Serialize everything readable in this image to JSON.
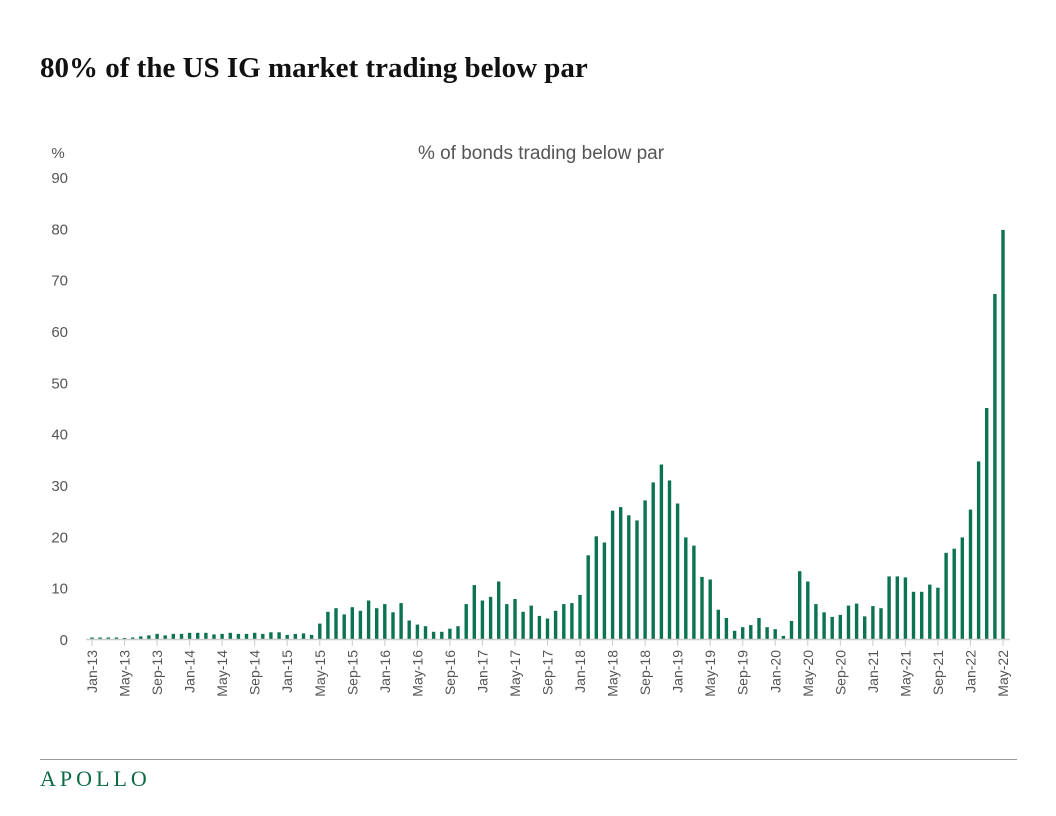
{
  "title": "80% of the US IG market trading below par",
  "logo": "APOLLO",
  "chart_data": {
    "type": "bar",
    "title": "% of bonds trading below par",
    "ylabel": "%",
    "xlabel": "",
    "ylim": [
      0,
      90
    ],
    "yticks": [
      0,
      10,
      20,
      30,
      40,
      50,
      60,
      70,
      80,
      90
    ],
    "grid": false,
    "color": "#0b7350",
    "xtick_labels": [
      "Jan-13",
      "May-13",
      "Sep-13",
      "Jan-14",
      "May-14",
      "Sep-14",
      "Jan-15",
      "May-15",
      "Sep-15",
      "Jan-16",
      "May-16",
      "Sep-16",
      "Jan-17",
      "May-17",
      "Sep-17",
      "Jan-18",
      "May-18",
      "Sep-18",
      "Jan-19",
      "May-19",
      "Sep-19",
      "Jan-20",
      "May-20",
      "Sep-20",
      "Jan-21",
      "May-21",
      "Sep-21",
      "Jan-22",
      "May-22"
    ],
    "start": "Jan-13",
    "frequency": "monthly",
    "values": [
      0.3,
      0.3,
      0.3,
      0.3,
      0.2,
      0.3,
      0.5,
      0.7,
      1.0,
      0.7,
      1.0,
      1.0,
      1.2,
      1.2,
      1.2,
      0.9,
      1.0,
      1.2,
      1.0,
      1.0,
      1.2,
      1.0,
      1.3,
      1.3,
      0.8,
      1.0,
      1.1,
      0.8,
      3.0,
      5.3,
      6.0,
      4.8,
      6.2,
      5.5,
      7.5,
      6.0,
      6.8,
      5.2,
      7.0,
      3.6,
      2.8,
      2.5,
      1.4,
      1.4,
      2.0,
      2.5,
      6.8,
      10.5,
      7.5,
      8.2,
      11.2,
      6.8,
      7.8,
      5.3,
      6.5,
      4.5,
      4.0,
      5.5,
      6.8,
      7.0,
      8.6,
      16.3,
      20.0,
      18.8,
      25.0,
      25.7,
      24.1,
      23.1,
      27.0,
      30.5,
      34.0,
      30.9,
      26.4,
      19.8,
      18.2,
      12.1,
      11.6,
      5.7,
      4.1,
      1.6,
      2.3,
      2.7,
      4.1,
      2.3,
      1.9,
      0.6,
      3.5,
      13.2,
      11.2,
      6.8,
      5.2,
      4.3,
      4.7,
      6.5,
      6.9,
      4.4,
      6.4,
      6.0,
      12.2,
      12.2,
      12.0,
      9.2,
      9.2,
      10.6,
      10.0,
      16.8,
      17.6,
      19.8,
      25.2,
      34.6,
      45.0,
      67.2,
      79.7
    ]
  }
}
